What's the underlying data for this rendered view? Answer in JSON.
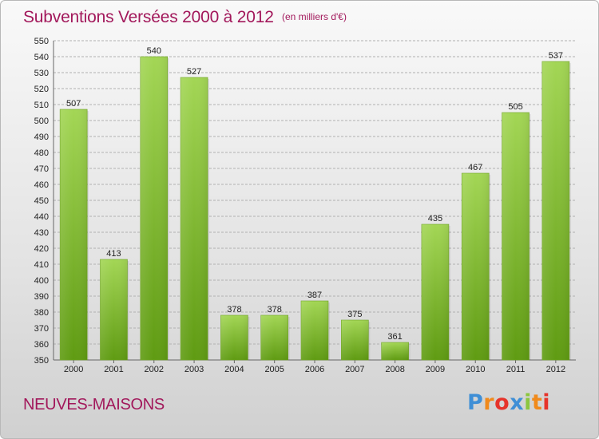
{
  "header": {
    "title": "Subventions Versées 2000 à 2012",
    "unit_note": "(en milliers d'€)"
  },
  "footer": {
    "commune": "NEUVES-MAISONS",
    "logo_text": "Proxiti"
  },
  "colors": {
    "title": "#a2185b",
    "bar_light": "#9ed14e",
    "bar_dark": "#5f9b12",
    "grid": "#b1b1b1"
  },
  "chart_data": {
    "type": "bar",
    "title": "Subventions Versées 2000 à 2012",
    "categories": [
      "2000",
      "2001",
      "2002",
      "2003",
      "2004",
      "2005",
      "2006",
      "2007",
      "2008",
      "2009",
      "2010",
      "2011",
      "2012"
    ],
    "values": [
      507,
      413,
      540,
      527,
      378,
      378,
      387,
      375,
      361,
      435,
      467,
      505,
      537
    ],
    "ylim": [
      350,
      550
    ],
    "ytick_step": 10,
    "grid": true,
    "xlabel": "",
    "ylabel": ""
  }
}
